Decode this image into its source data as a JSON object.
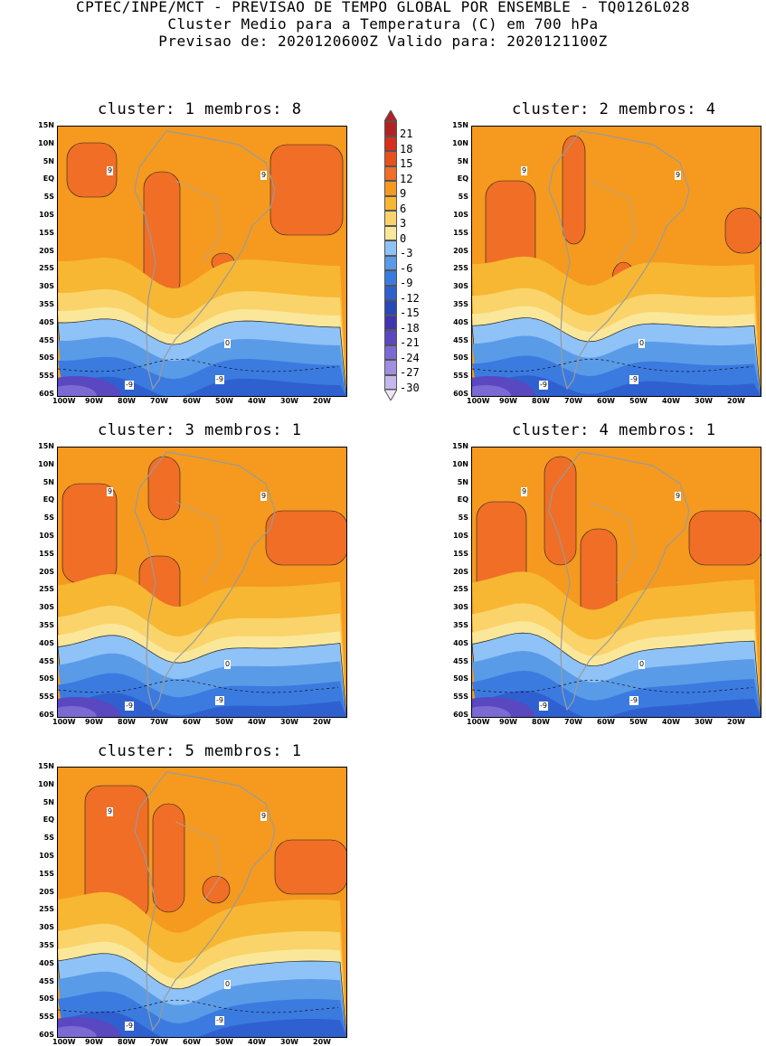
{
  "header": {
    "line1": "CPTEC/INPE/MCT - PREVISAO DE TEMPO GLOBAL POR ENSEMBLE - TQ0126L028",
    "line2": "Cluster Medio para a Temperatura (C) em 700 hPa",
    "line3": "Previsao de: 2020120600Z   Valido para: 2020121100Z"
  },
  "panels": [
    {
      "title": "cluster: 1   membros: 8"
    },
    {
      "title": "cluster: 2   membros: 4"
    },
    {
      "title": "cluster: 3   membros: 1"
    },
    {
      "title": "cluster: 4   membros: 1"
    },
    {
      "title": "cluster: 5   membros: 1"
    }
  ],
  "lat_ticks": [
    "15N",
    "10N",
    "5N",
    "EQ",
    "5S",
    "10S",
    "15S",
    "20S",
    "25S",
    "30S",
    "35S",
    "40S",
    "45S",
    "50S",
    "55S",
    "60S"
  ],
  "lon_ticks": [
    "100W",
    "90W",
    "80W",
    "70W",
    "60W",
    "50W",
    "40W",
    "30W",
    "20W"
  ],
  "colorbar": {
    "labels": [
      "21",
      "18",
      "15",
      "12",
      "9",
      "6",
      "3",
      "0",
      "-3",
      "-6",
      "-9",
      "-12",
      "-15",
      "-18",
      "-21",
      "-24",
      "-27",
      "-30"
    ],
    "colors": [
      "#b22222",
      "#d6301d",
      "#e8501d",
      "#f06e26",
      "#f59a1f",
      "#f7b733",
      "#fad46a",
      "#fbe79a",
      "#8fc2f7",
      "#5a9be8",
      "#3b7be0",
      "#2f60d0",
      "#2848b8",
      "#4034b0",
      "#5a48c0",
      "#7c6ad4",
      "#a08ee0",
      "#c5b8ec"
    ]
  },
  "contour_labels": {
    "nine": "9",
    "zero": "0",
    "minus_nine": "-9"
  }
}
